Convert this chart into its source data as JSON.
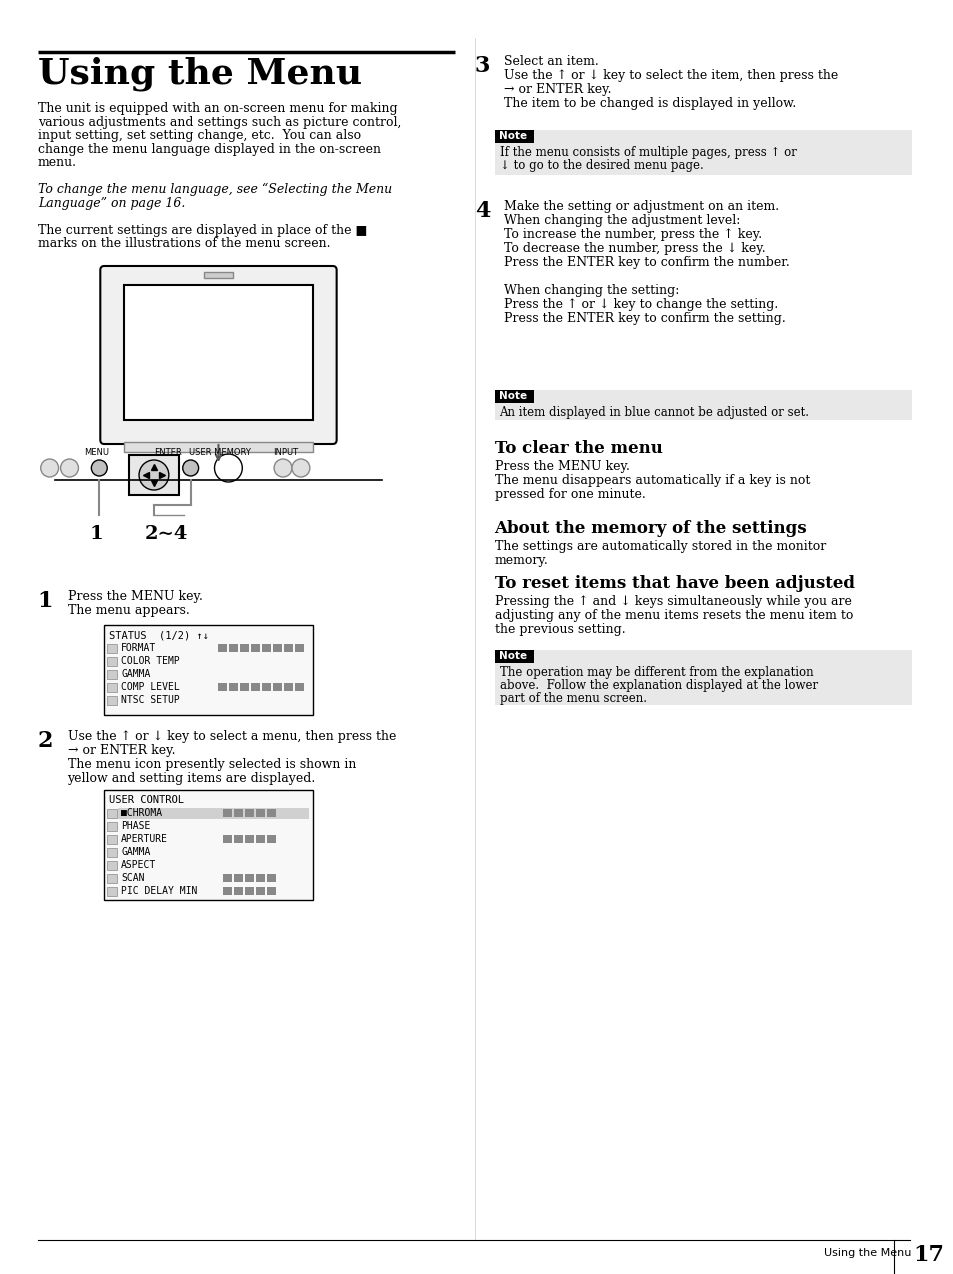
{
  "page_title": "Using the Menu",
  "title_underline": true,
  "background_color": "#ffffff",
  "text_color": "#000000",
  "page_number": "17",
  "page_label": "Using the Menu",
  "body_text_left": [
    "The unit is equipped with an on-screen menu for making",
    "various adjustments and settings such as picture control,",
    "input setting, set setting change, etc.  You can also",
    "change the menu language displayed in the on-screen",
    "menu.",
    "",
    "To change the menu language, see “Selecting the Menu",
    "Language” on page 16.",
    "",
    "The current settings are displayed in place of the ■",
    "marks on the illustrations of the menu screen."
  ],
  "step1_heading": "1",
  "step1_text": [
    "Press the MENU key.",
    "The menu appears."
  ],
  "step2_heading": "2",
  "step2_text": [
    "Use the ↑ or ↓ key to select a menu, then press the",
    "→ or ENTER key.",
    "The menu icon presently selected is shown in",
    "yellow and setting items are displayed."
  ],
  "step3_heading": "3",
  "step3_text": [
    "Select an item.",
    "Use the ↑ or ↓ key to select the item, then press the",
    "→ or ENTER key.",
    "The item to be changed is displayed in yellow."
  ],
  "note1_text": [
    "If the menu consists of multiple pages, press ↑ or",
    "↓ to go to the desired menu page."
  ],
  "step4_heading": "4",
  "step4_text": [
    "Make the setting or adjustment on an item.",
    "When changing the adjustment level:",
    "To increase the number, press the ↑ key.",
    "To decrease the number, press the ↓ key.",
    "Press the ENTER key to confirm the number.",
    "",
    "When changing the setting:",
    "Press the ↑ or ↓ key to change the setting.",
    "Press the ENTER key to confirm the setting."
  ],
  "note2_text": [
    "An item displayed in blue cannot be adjusted or set."
  ],
  "clear_menu_heading": "To clear the menu",
  "clear_menu_text": [
    "Press the MENU key.",
    "The menu disappears automatically if a key is not",
    "pressed for one minute."
  ],
  "memory_heading": "About the memory of the settings",
  "memory_text": [
    "The settings are automatically stored in the monitor",
    "memory."
  ],
  "reset_heading": "To reset items that have been adjusted",
  "reset_text": [
    "Pressing the ↑ and ↓ keys simultaneously while you are",
    "adjusting any of the menu items resets the menu item to",
    "the previous setting."
  ],
  "note3_text": [
    "The operation may be different from the explanation",
    "above.  Follow the explanation displayed at the lower",
    "part of the menu screen."
  ],
  "menu_screenshot1": {
    "title": "STATUS  (1/2) ↑↓",
    "items": [
      "FORMAT",
      "COLOR TEMP",
      "GAMMA",
      "COMP LEVEL",
      "NTSC SETUP"
    ]
  },
  "menu_screenshot2": {
    "title": "USER CONTROL",
    "items": [
      "■CHROMA",
      "PHASE",
      "APERTURE",
      "GAMMA",
      "ASPECT",
      "SCAN",
      "PIC DELAY MIN"
    ]
  }
}
